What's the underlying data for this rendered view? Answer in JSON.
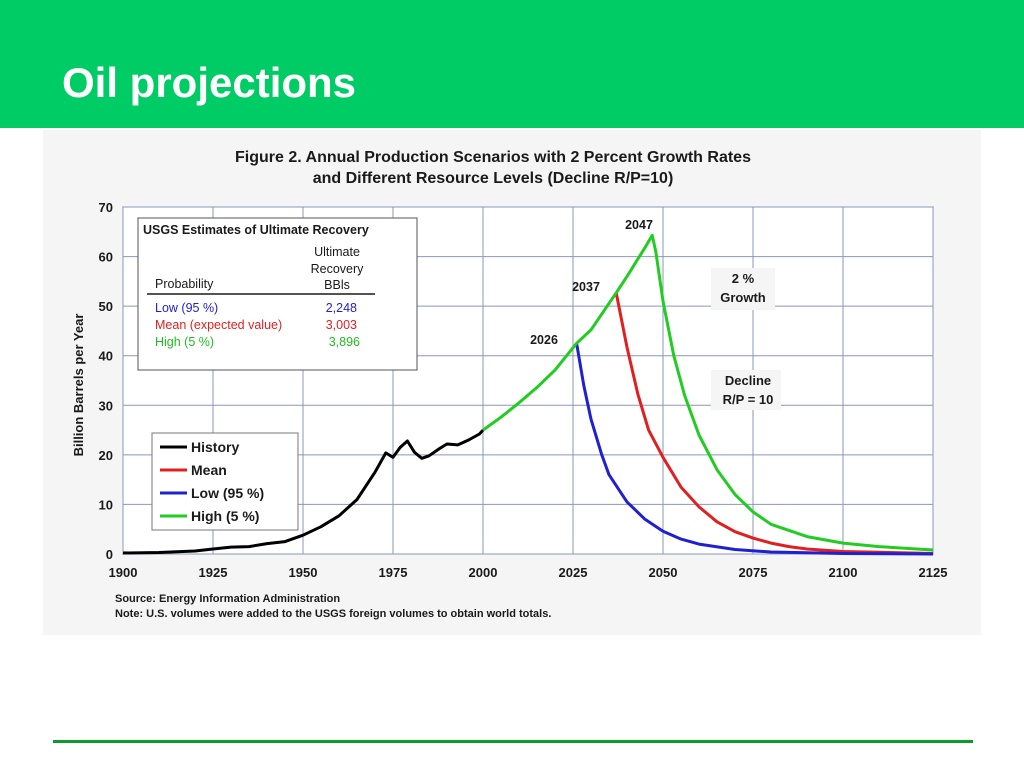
{
  "slide": {
    "title": "Oil projections",
    "header_color": "#00cc66",
    "footer_rule_color": "#0a9a2e"
  },
  "figure": {
    "title_line1": "Figure 2.  Annual Production Scenarios with 2 Percent Growth Rates",
    "title_line2": "and Different Resource Levels (Decline R/P=10)",
    "source": "Source:  Energy Information Administration",
    "note": "Note:  U.S. volumes were added to the USGS foreign volumes to obtain world totals."
  },
  "usgs_table": {
    "title": "USGS Estimates of Ultimate Recovery",
    "col1_header": "Probability",
    "col2_header": [
      "Ultimate",
      "Recovery",
      "BBls"
    ],
    "rows": [
      {
        "label": "Low (95 %)",
        "value": "2,248",
        "color": "#2222cc"
      },
      {
        "label": "Mean (expected value)",
        "value": "3,003",
        "color": "#dd2222"
      },
      {
        "label": "High (5 %)",
        "value": "3,896",
        "color": "#22bb22"
      }
    ]
  },
  "annotations": {
    "peak_2026": "2026",
    "peak_2037": "2037",
    "peak_2047": "2047",
    "growth": [
      "2 %",
      "Growth"
    ],
    "decline": [
      "Decline",
      "R/P = 10"
    ]
  },
  "chart_data": {
    "type": "line",
    "title": "Figure 2.  Annual Production Scenarios with 2 Percent Growth Rates and Different Resource Levels (Decline R/P=10)",
    "xlabel": "",
    "ylabel": "Billion Barrels per Year",
    "xlim": [
      1900,
      2125
    ],
    "ylim": [
      0,
      70
    ],
    "x_ticks": [
      "1900",
      "1925",
      "1950",
      "1975",
      "2000",
      "2025",
      "2050",
      "2075",
      "2100",
      "2125"
    ],
    "y_ticks": [
      "0",
      "10",
      "20",
      "30",
      "40",
      "50",
      "60",
      "70"
    ],
    "grid": true,
    "legend_position": "lower-left",
    "series": [
      {
        "name": "History",
        "color": "#000000",
        "points": [
          [
            1900,
            0.2
          ],
          [
            1910,
            0.3
          ],
          [
            1920,
            0.6
          ],
          [
            1925,
            1.0
          ],
          [
            1930,
            1.4
          ],
          [
            1935,
            1.5
          ],
          [
            1940,
            2.1
          ],
          [
            1945,
            2.5
          ],
          [
            1950,
            3.8
          ],
          [
            1955,
            5.5
          ],
          [
            1960,
            7.7
          ],
          [
            1965,
            11.0
          ],
          [
            1970,
            16.5
          ],
          [
            1973,
            20.4
          ],
          [
            1975,
            19.5
          ],
          [
            1977,
            21.5
          ],
          [
            1979,
            22.8
          ],
          [
            1981,
            20.5
          ],
          [
            1983,
            19.3
          ],
          [
            1985,
            19.8
          ],
          [
            1988,
            21.3
          ],
          [
            1990,
            22.2
          ],
          [
            1993,
            22.0
          ],
          [
            1996,
            23.0
          ],
          [
            1999,
            24.2
          ],
          [
            2000,
            25.0
          ]
        ]
      },
      {
        "name": "Mean",
        "color": "#e02020",
        "points": [
          [
            2037,
            52.7
          ],
          [
            2040,
            41.7
          ],
          [
            2043,
            32.3
          ],
          [
            2046,
            25.0
          ],
          [
            2050,
            19.5
          ],
          [
            2055,
            13.5
          ],
          [
            2060,
            9.5
          ],
          [
            2065,
            6.5
          ],
          [
            2070,
            4.5
          ],
          [
            2075,
            3.2
          ],
          [
            2080,
            2.2
          ],
          [
            2085,
            1.5
          ],
          [
            2090,
            1.0
          ],
          [
            2100,
            0.5
          ],
          [
            2125,
            0.1
          ]
        ]
      },
      {
        "name": "Low (95 %)",
        "color": "#2020d0",
        "points": [
          [
            2026,
            42.5
          ],
          [
            2028,
            34.0
          ],
          [
            2030,
            27.2
          ],
          [
            2033,
            20.0
          ],
          [
            2035,
            16.0
          ],
          [
            2040,
            10.5
          ],
          [
            2045,
            7.0
          ],
          [
            2050,
            4.6
          ],
          [
            2055,
            3.0
          ],
          [
            2060,
            2.0
          ],
          [
            2070,
            0.9
          ],
          [
            2080,
            0.4
          ],
          [
            2100,
            0.1
          ],
          [
            2125,
            0.0
          ]
        ]
      },
      {
        "name": "High (5 %)",
        "color": "#22cc22",
        "points": [
          [
            2000,
            25.0
          ],
          [
            2005,
            27.6
          ],
          [
            2010,
            30.5
          ],
          [
            2015,
            33.6
          ],
          [
            2020,
            37.1
          ],
          [
            2026,
            42.5
          ],
          [
            2030,
            45.2
          ],
          [
            2037,
            52.7
          ],
          [
            2040,
            56.0
          ],
          [
            2045,
            61.8
          ],
          [
            2047,
            64.3
          ],
          [
            2048,
            61.0
          ],
          [
            2050,
            51.0
          ],
          [
            2053,
            40.0
          ],
          [
            2056,
            32.0
          ],
          [
            2060,
            24.0
          ],
          [
            2065,
            17.0
          ],
          [
            2070,
            12.0
          ],
          [
            2075,
            8.5
          ],
          [
            2080,
            6.0
          ],
          [
            2090,
            3.5
          ],
          [
            2100,
            2.2
          ],
          [
            2110,
            1.5
          ],
          [
            2125,
            0.8
          ]
        ]
      }
    ]
  }
}
